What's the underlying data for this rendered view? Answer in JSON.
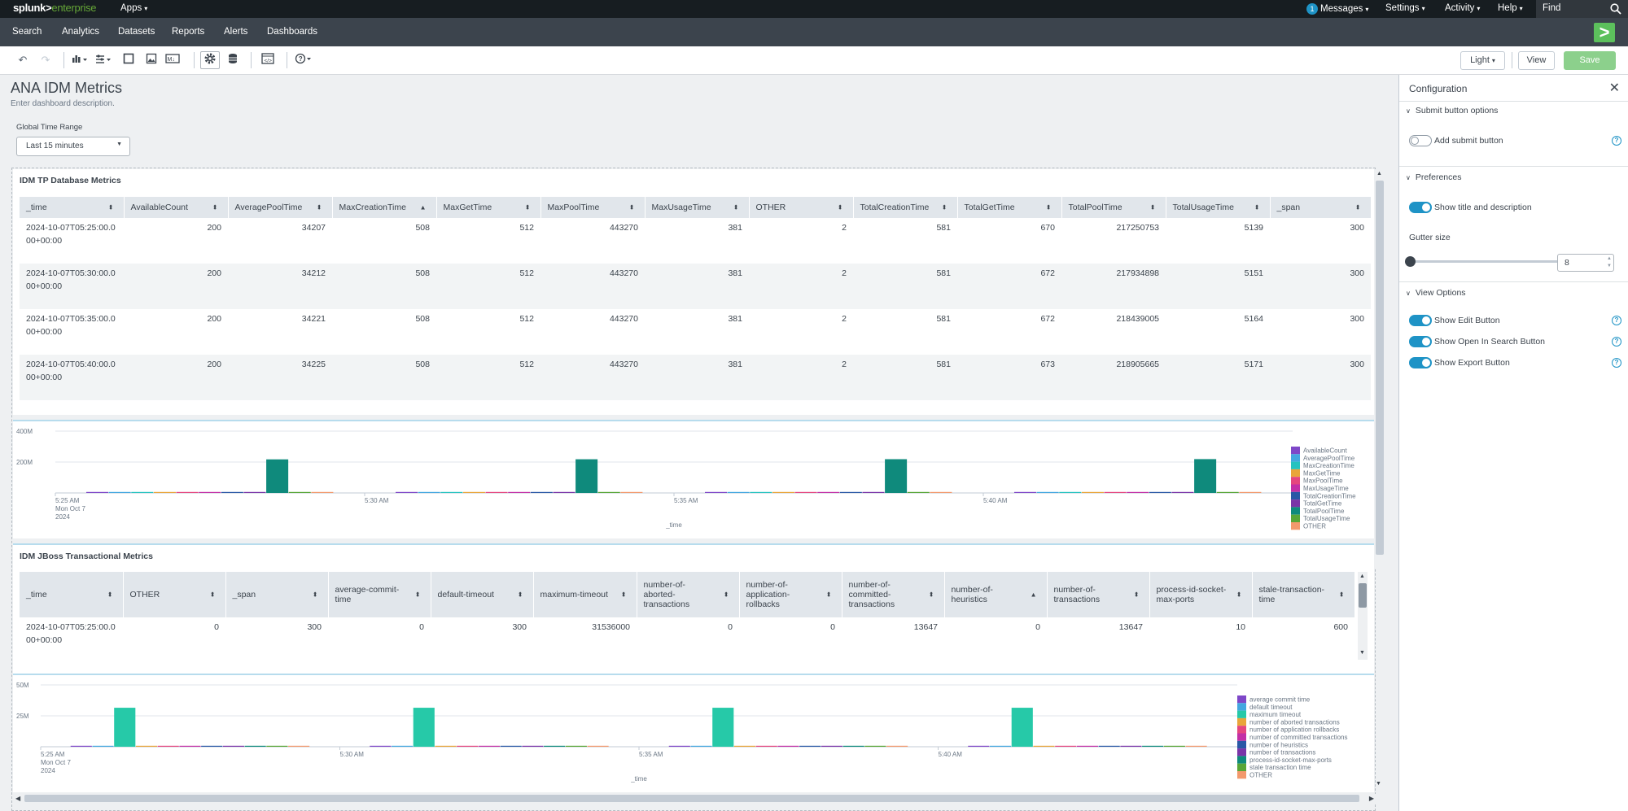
{
  "topbar": {
    "logo_main": "splunk>",
    "logo_sub": "enterprise",
    "apps": "Apps",
    "messages_count": "1",
    "messages": "Messages",
    "settings": "Settings",
    "activity": "Activity",
    "help": "Help",
    "find": "Find"
  },
  "appbar": {
    "nav": [
      "Search",
      "Analytics",
      "Datasets",
      "Reports",
      "Alerts",
      "Dashboards"
    ]
  },
  "toolbar": {
    "theme": "Light",
    "view": "View",
    "save": "Save"
  },
  "dashboard": {
    "title": "ANA IDM Metrics",
    "description": "Enter dashboard description.",
    "time_label": "Global Time Range",
    "time_value": "Last 15 minutes"
  },
  "panel1": {
    "title": "IDM TP Database Metrics",
    "columns": [
      "_time",
      "AvailableCount",
      "AveragePoolTime",
      "MaxCreationTime",
      "MaxGetTime",
      "MaxPoolTime",
      "MaxUsageTime",
      "OTHER",
      "TotalCreationTime",
      "TotalGetTime",
      "TotalPoolTime",
      "TotalUsageTime",
      "_span"
    ],
    "rows": [
      [
        "2024-10-07T05:25:00.000+00:00",
        "200",
        "34207",
        "508",
        "512",
        "443270",
        "381",
        "2",
        "581",
        "670",
        "217250753",
        "5139",
        "300"
      ],
      [
        "2024-10-07T05:30:00.000+00:00",
        "200",
        "34212",
        "508",
        "512",
        "443270",
        "381",
        "2",
        "581",
        "672",
        "217934898",
        "5151",
        "300"
      ],
      [
        "2024-10-07T05:35:00.000+00:00",
        "200",
        "34221",
        "508",
        "512",
        "443270",
        "381",
        "2",
        "581",
        "672",
        "218439005",
        "5164",
        "300"
      ],
      [
        "2024-10-07T05:40:00.000+00:00",
        "200",
        "34225",
        "508",
        "512",
        "443270",
        "381",
        "2",
        "581",
        "673",
        "218905665",
        "5171",
        "300"
      ]
    ]
  },
  "panel3": {
    "title": "IDM JBoss Transactional Metrics",
    "columns": [
      "_time",
      "OTHER",
      "_span",
      "average-commit-time",
      "default-timeout",
      "maximum-timeout",
      "number-of-aborted-transactions",
      "number-of-application-rollbacks",
      "number-of-committed-transactions",
      "number-of-heuristics",
      "number-of-transactions",
      "process-id-socket-max-ports",
      "stale-transaction-time"
    ],
    "rows": [
      [
        "2024-10-07T05:25:00.000+00:00",
        "0",
        "300",
        "0",
        "300",
        "31536000",
        "0",
        "0",
        "13647",
        "0",
        "13647",
        "10",
        "600"
      ]
    ]
  },
  "chart_data": [
    {
      "type": "bar",
      "categories": [
        "5:25 AM",
        "5:30 AM",
        "5:35 AM",
        "5:40 AM"
      ],
      "x_first_label": [
        "5:25 AM",
        "Mon Oct 7",
        "2024"
      ],
      "xlabel": "_time",
      "yticks": [
        "400M",
        "200M"
      ],
      "ylim": [
        0,
        400000000
      ],
      "legend_position": "right",
      "series": [
        {
          "name": "AvailableCount",
          "color": "#7e47c8",
          "values": [
            200,
            200,
            200,
            200
          ]
        },
        {
          "name": "AveragePoolTime",
          "color": "#43a7e0",
          "values": [
            34207,
            34212,
            34221,
            34225
          ]
        },
        {
          "name": "MaxCreationTime",
          "color": "#26c3c0",
          "values": [
            508,
            508,
            508,
            508
          ]
        },
        {
          "name": "MaxGetTime",
          "color": "#e9a53a",
          "values": [
            512,
            512,
            512,
            512
          ]
        },
        {
          "name": "MaxPoolTime",
          "color": "#e5467f",
          "values": [
            443270,
            443270,
            443270,
            443270
          ]
        },
        {
          "name": "MaxUsageTime",
          "color": "#c32fa6",
          "values": [
            381,
            381,
            381,
            381
          ]
        },
        {
          "name": "TotalCreationTime",
          "color": "#2a58a6",
          "values": [
            581,
            581,
            581,
            581
          ]
        },
        {
          "name": "TotalGetTime",
          "color": "#7a35a8",
          "values": [
            670,
            672,
            672,
            673
          ]
        },
        {
          "name": "TotalPoolTime",
          "color": "#0f8a7c",
          "values": [
            217250753,
            217934898,
            218439005,
            218905665
          ]
        },
        {
          "name": "TotalUsageTime",
          "color": "#58a636",
          "values": [
            5139,
            5151,
            5164,
            5171
          ]
        },
        {
          "name": "OTHER",
          "color": "#f3996c",
          "values": [
            2,
            2,
            2,
            2
          ]
        }
      ]
    },
    {
      "type": "bar",
      "categories": [
        "5:25 AM",
        "5:30 AM",
        "5:35 AM",
        "5:40 AM"
      ],
      "x_first_label": [
        "5:25 AM",
        "Mon Oct 7",
        "2024"
      ],
      "xlabel": "_time",
      "yticks": [
        "50M",
        "25M"
      ],
      "ylim": [
        0,
        50000000
      ],
      "legend_position": "right",
      "series": [
        {
          "name": "average commit time",
          "color": "#7e47c8",
          "values": [
            0,
            0,
            0,
            0
          ]
        },
        {
          "name": "default timeout",
          "color": "#43a7e0",
          "values": [
            300,
            300,
            300,
            300
          ]
        },
        {
          "name": "maximum timeout",
          "color": "#26c9a8",
          "values": [
            31536000,
            31536000,
            31536000,
            31536000
          ]
        },
        {
          "name": "number of aborted transactions",
          "color": "#e9a53a",
          "values": [
            0,
            0,
            0,
            0
          ]
        },
        {
          "name": "number of application rollbacks",
          "color": "#e5467f",
          "values": [
            0,
            0,
            0,
            0
          ]
        },
        {
          "name": "number of committed transactions",
          "color": "#c32fa6",
          "values": [
            13647,
            13647,
            13647,
            13647
          ]
        },
        {
          "name": "number of heuristics",
          "color": "#2a58a6",
          "values": [
            0,
            0,
            0,
            0
          ]
        },
        {
          "name": "number of transactions",
          "color": "#7a35a8",
          "values": [
            13647,
            13647,
            13647,
            13647
          ]
        },
        {
          "name": "process-id-socket-max-ports",
          "color": "#0f8a7c",
          "values": [
            10,
            10,
            10,
            10
          ]
        },
        {
          "name": "stale transaction time",
          "color": "#58a636",
          "values": [
            600,
            600,
            600,
            600
          ]
        },
        {
          "name": "OTHER",
          "color": "#f3996c",
          "values": [
            0,
            0,
            0,
            0
          ]
        }
      ]
    }
  ],
  "config": {
    "title": "Configuration",
    "sections": {
      "submit": "Submit button options",
      "preferences": "Preferences",
      "view": "View Options"
    },
    "add_submit": "Add submit button",
    "show_title": "Show title and description",
    "gutter_label": "Gutter size",
    "gutter_value": "8",
    "show_edit": "Show Edit Button",
    "show_open": "Show Open In Search Button",
    "show_export": "Show Export Button"
  }
}
